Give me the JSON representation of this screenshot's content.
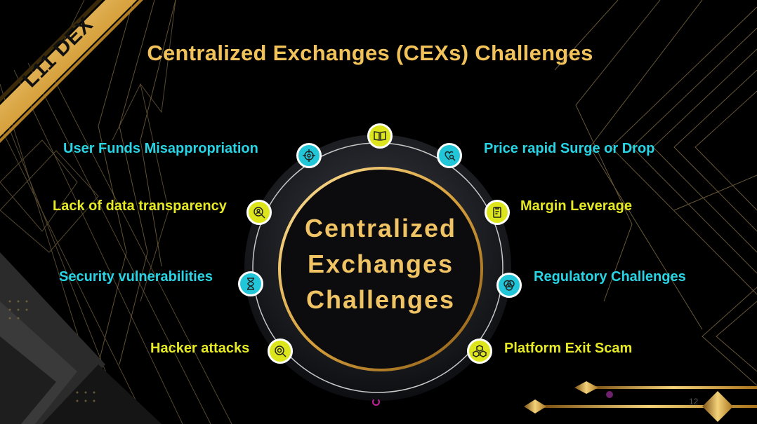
{
  "ribbon": {
    "text": "L11 DEX"
  },
  "title": "Centralized Exchanges (CEXs) Challenges",
  "center": {
    "line1": "Centralized",
    "line2": "Exchanges",
    "line3": "Challenges"
  },
  "challenges": [
    {
      "label": "User Funds Misappropriation",
      "icon": "crosshair-icon",
      "color": "cyan"
    },
    {
      "label": "Lack of data transparency",
      "icon": "search-person-icon",
      "color": "yellow"
    },
    {
      "label": "Security vulnerabilities",
      "icon": "hourglass-icon",
      "color": "cyan"
    },
    {
      "label": "Hacker attacks",
      "icon": "virus-search-icon",
      "color": "yellow"
    },
    {
      "label": "Price rapid Surge or Drop",
      "icon": "heart-search-icon",
      "color": "cyan"
    },
    {
      "label": "Margin Leverage",
      "icon": "clipboard-icon",
      "color": "yellow"
    },
    {
      "label": "Regulatory Challenges",
      "icon": "venn-icon",
      "color": "cyan"
    },
    {
      "label": "Platform Exit Scam",
      "icon": "boxes-icon",
      "color": "yellow"
    }
  ],
  "top_icon": "book-icon",
  "page_number": "12",
  "colors": {
    "gold": "#f2c25a",
    "cyan": "#28d5e6",
    "yellow": "#e6ea24",
    "background": "#000000"
  }
}
